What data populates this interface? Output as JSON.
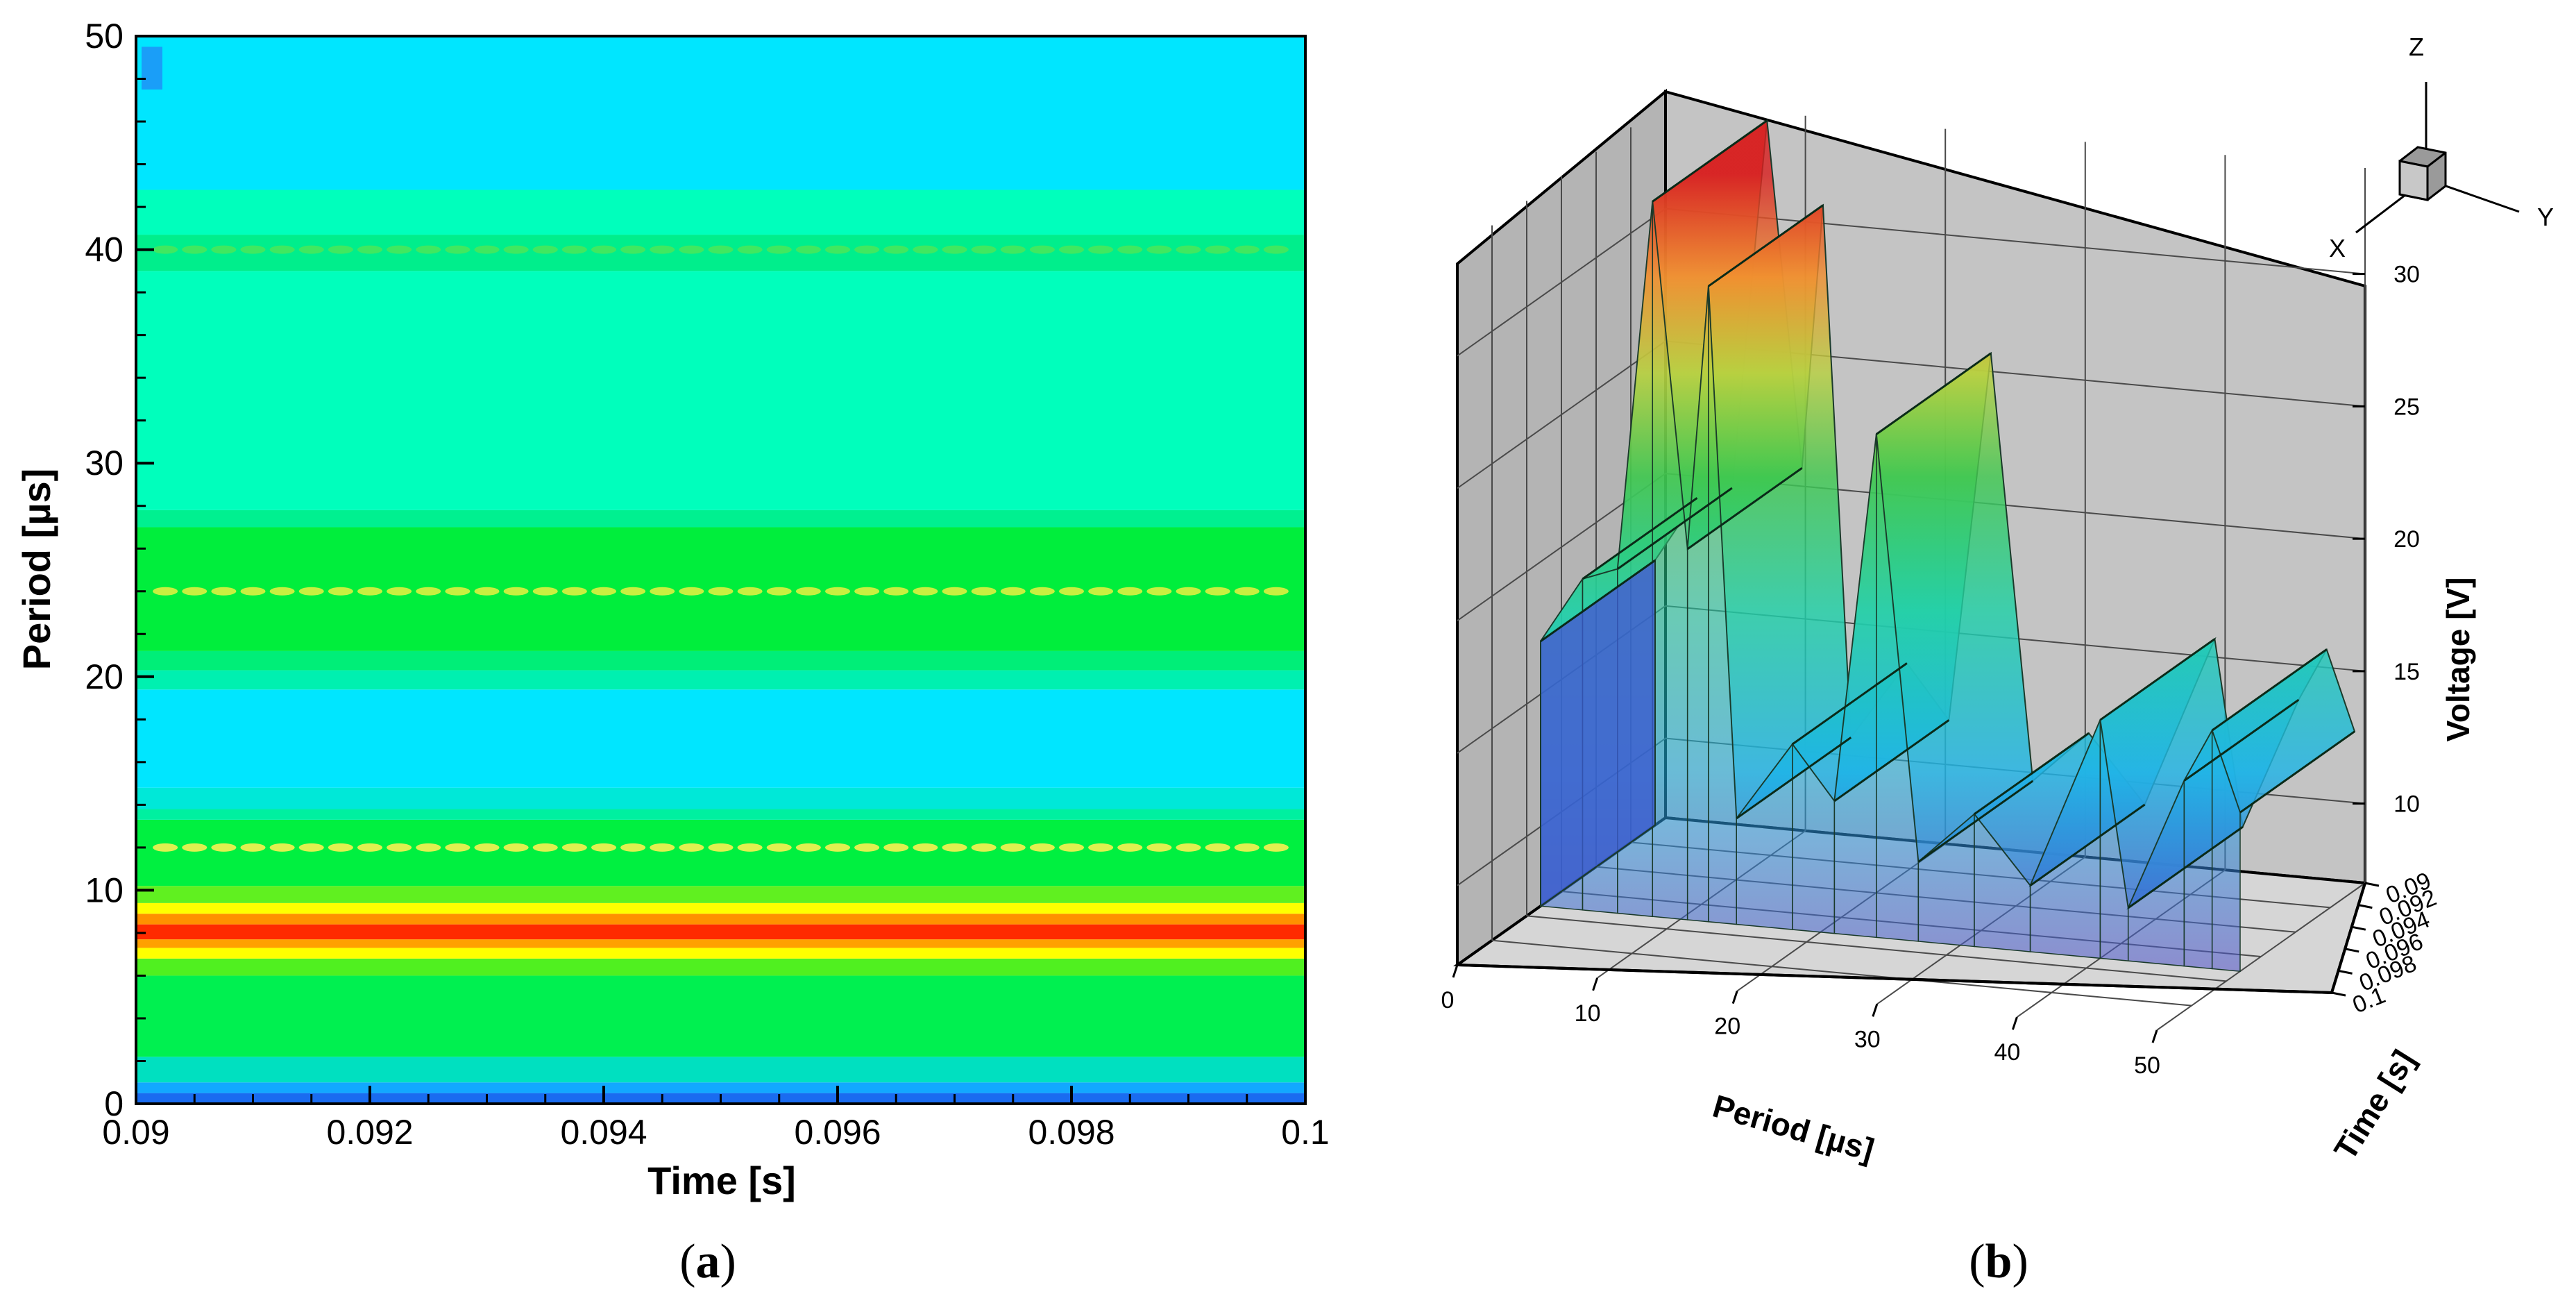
{
  "chart_data": [
    {
      "type": "heatmap",
      "panel_label": "(a)",
      "panel_label_letter": "a",
      "xlabel": "Time [s]",
      "ylabel": "Period [µs]",
      "xlim": [
        0.09,
        0.1
      ],
      "ylim": [
        0,
        50
      ],
      "xticks": [
        "0.09",
        "0.092",
        "0.094",
        "0.096",
        "0.098",
        "0.1"
      ],
      "yticks": [
        "0",
        "10",
        "20",
        "30",
        "40",
        "50"
      ],
      "period_bands": [
        {
          "from": 0,
          "to": 0.5,
          "color": "#1a6cf0"
        },
        {
          "from": 0.5,
          "to": 1.0,
          "color": "#12a8ff"
        },
        {
          "from": 1.0,
          "to": 2.2,
          "color": "#00e0c0"
        },
        {
          "from": 2.2,
          "to": 6.0,
          "color": "#00f050"
        },
        {
          "from": 6.0,
          "to": 6.8,
          "color": "#50f020"
        },
        {
          "from": 6.8,
          "to": 7.3,
          "color": "#ffff00"
        },
        {
          "from": 7.3,
          "to": 7.7,
          "color": "#ffa000"
        },
        {
          "from": 7.7,
          "to": 8.4,
          "color": "#ff2a00"
        },
        {
          "from": 8.4,
          "to": 8.9,
          "color": "#ff9000"
        },
        {
          "from": 8.9,
          "to": 9.4,
          "color": "#ffff00"
        },
        {
          "from": 9.4,
          "to": 10.2,
          "color": "#60f020"
        },
        {
          "from": 10.2,
          "to": 13.3,
          "color": "#00f040"
        },
        {
          "from": 13.3,
          "to": 13.8,
          "color": "#00f0a0"
        },
        {
          "from": 13.8,
          "to": 14.8,
          "color": "#00e8d8"
        },
        {
          "from": 14.8,
          "to": 19.4,
          "color": "#00e6ff"
        },
        {
          "from": 19.4,
          "to": 20.3,
          "color": "#00f0b0"
        },
        {
          "from": 20.3,
          "to": 21.2,
          "color": "#00ee78"
        },
        {
          "from": 21.2,
          "to": 27.0,
          "color": "#00ee3c"
        },
        {
          "from": 27.0,
          "to": 27.8,
          "color": "#00f090"
        },
        {
          "from": 27.8,
          "to": 39.0,
          "color": "#00ffbc"
        },
        {
          "from": 39.0,
          "to": 40.7,
          "color": "#00ee8c"
        },
        {
          "from": 40.7,
          "to": 42.8,
          "color": "#00ffbc"
        },
        {
          "from": 42.8,
          "to": 50.0,
          "color": "#00e6ff"
        }
      ],
      "ridges": [
        {
          "period": 40,
          "color": "#40e860"
        },
        {
          "period": 24,
          "color": "#c8f040"
        },
        {
          "period": 12,
          "color": "#e0f050"
        }
      ]
    },
    {
      "type": "surface",
      "panel_label": "(b)",
      "panel_label_letter": "b",
      "xlabel": "Period [µs]",
      "ylabel": "Time [s]",
      "zlabel": "Voltage [V]",
      "period_ticks": [
        "0",
        "10",
        "20",
        "30",
        "40",
        "50"
      ],
      "time_ticks": [
        "0.09",
        "0.092",
        "0.094",
        "0.096",
        "0.098",
        "0.1"
      ],
      "voltage_ticks": [
        "10",
        "15",
        "20",
        "25",
        "30"
      ],
      "zlim": [
        7,
        34
      ],
      "axis_triad": [
        "X",
        "Y",
        "Z"
      ],
      "voltage_profile": [
        {
          "period": 0.0,
          "voltage": 17
        },
        {
          "period": 3.0,
          "voltage": 19.5
        },
        {
          "period": 5.5,
          "voltage": 20
        },
        {
          "period": 8.0,
          "voltage": 34
        },
        {
          "period": 10.5,
          "voltage": 21
        },
        {
          "period": 12.0,
          "voltage": 31
        },
        {
          "period": 14.0,
          "voltage": 11
        },
        {
          "period": 18.0,
          "voltage": 14
        },
        {
          "period": 21.0,
          "voltage": 12
        },
        {
          "period": 24.0,
          "voltage": 26
        },
        {
          "period": 27.0,
          "voltage": 10
        },
        {
          "period": 31.0,
          "voltage": 12
        },
        {
          "period": 35.0,
          "voltage": 9.5
        },
        {
          "period": 40.0,
          "voltage": 16
        },
        {
          "period": 42.0,
          "voltage": 9
        },
        {
          "period": 46.0,
          "voltage": 14
        },
        {
          "period": 48.0,
          "voltage": 16
        },
        {
          "period": 50.0,
          "voltage": 13
        }
      ]
    }
  ]
}
